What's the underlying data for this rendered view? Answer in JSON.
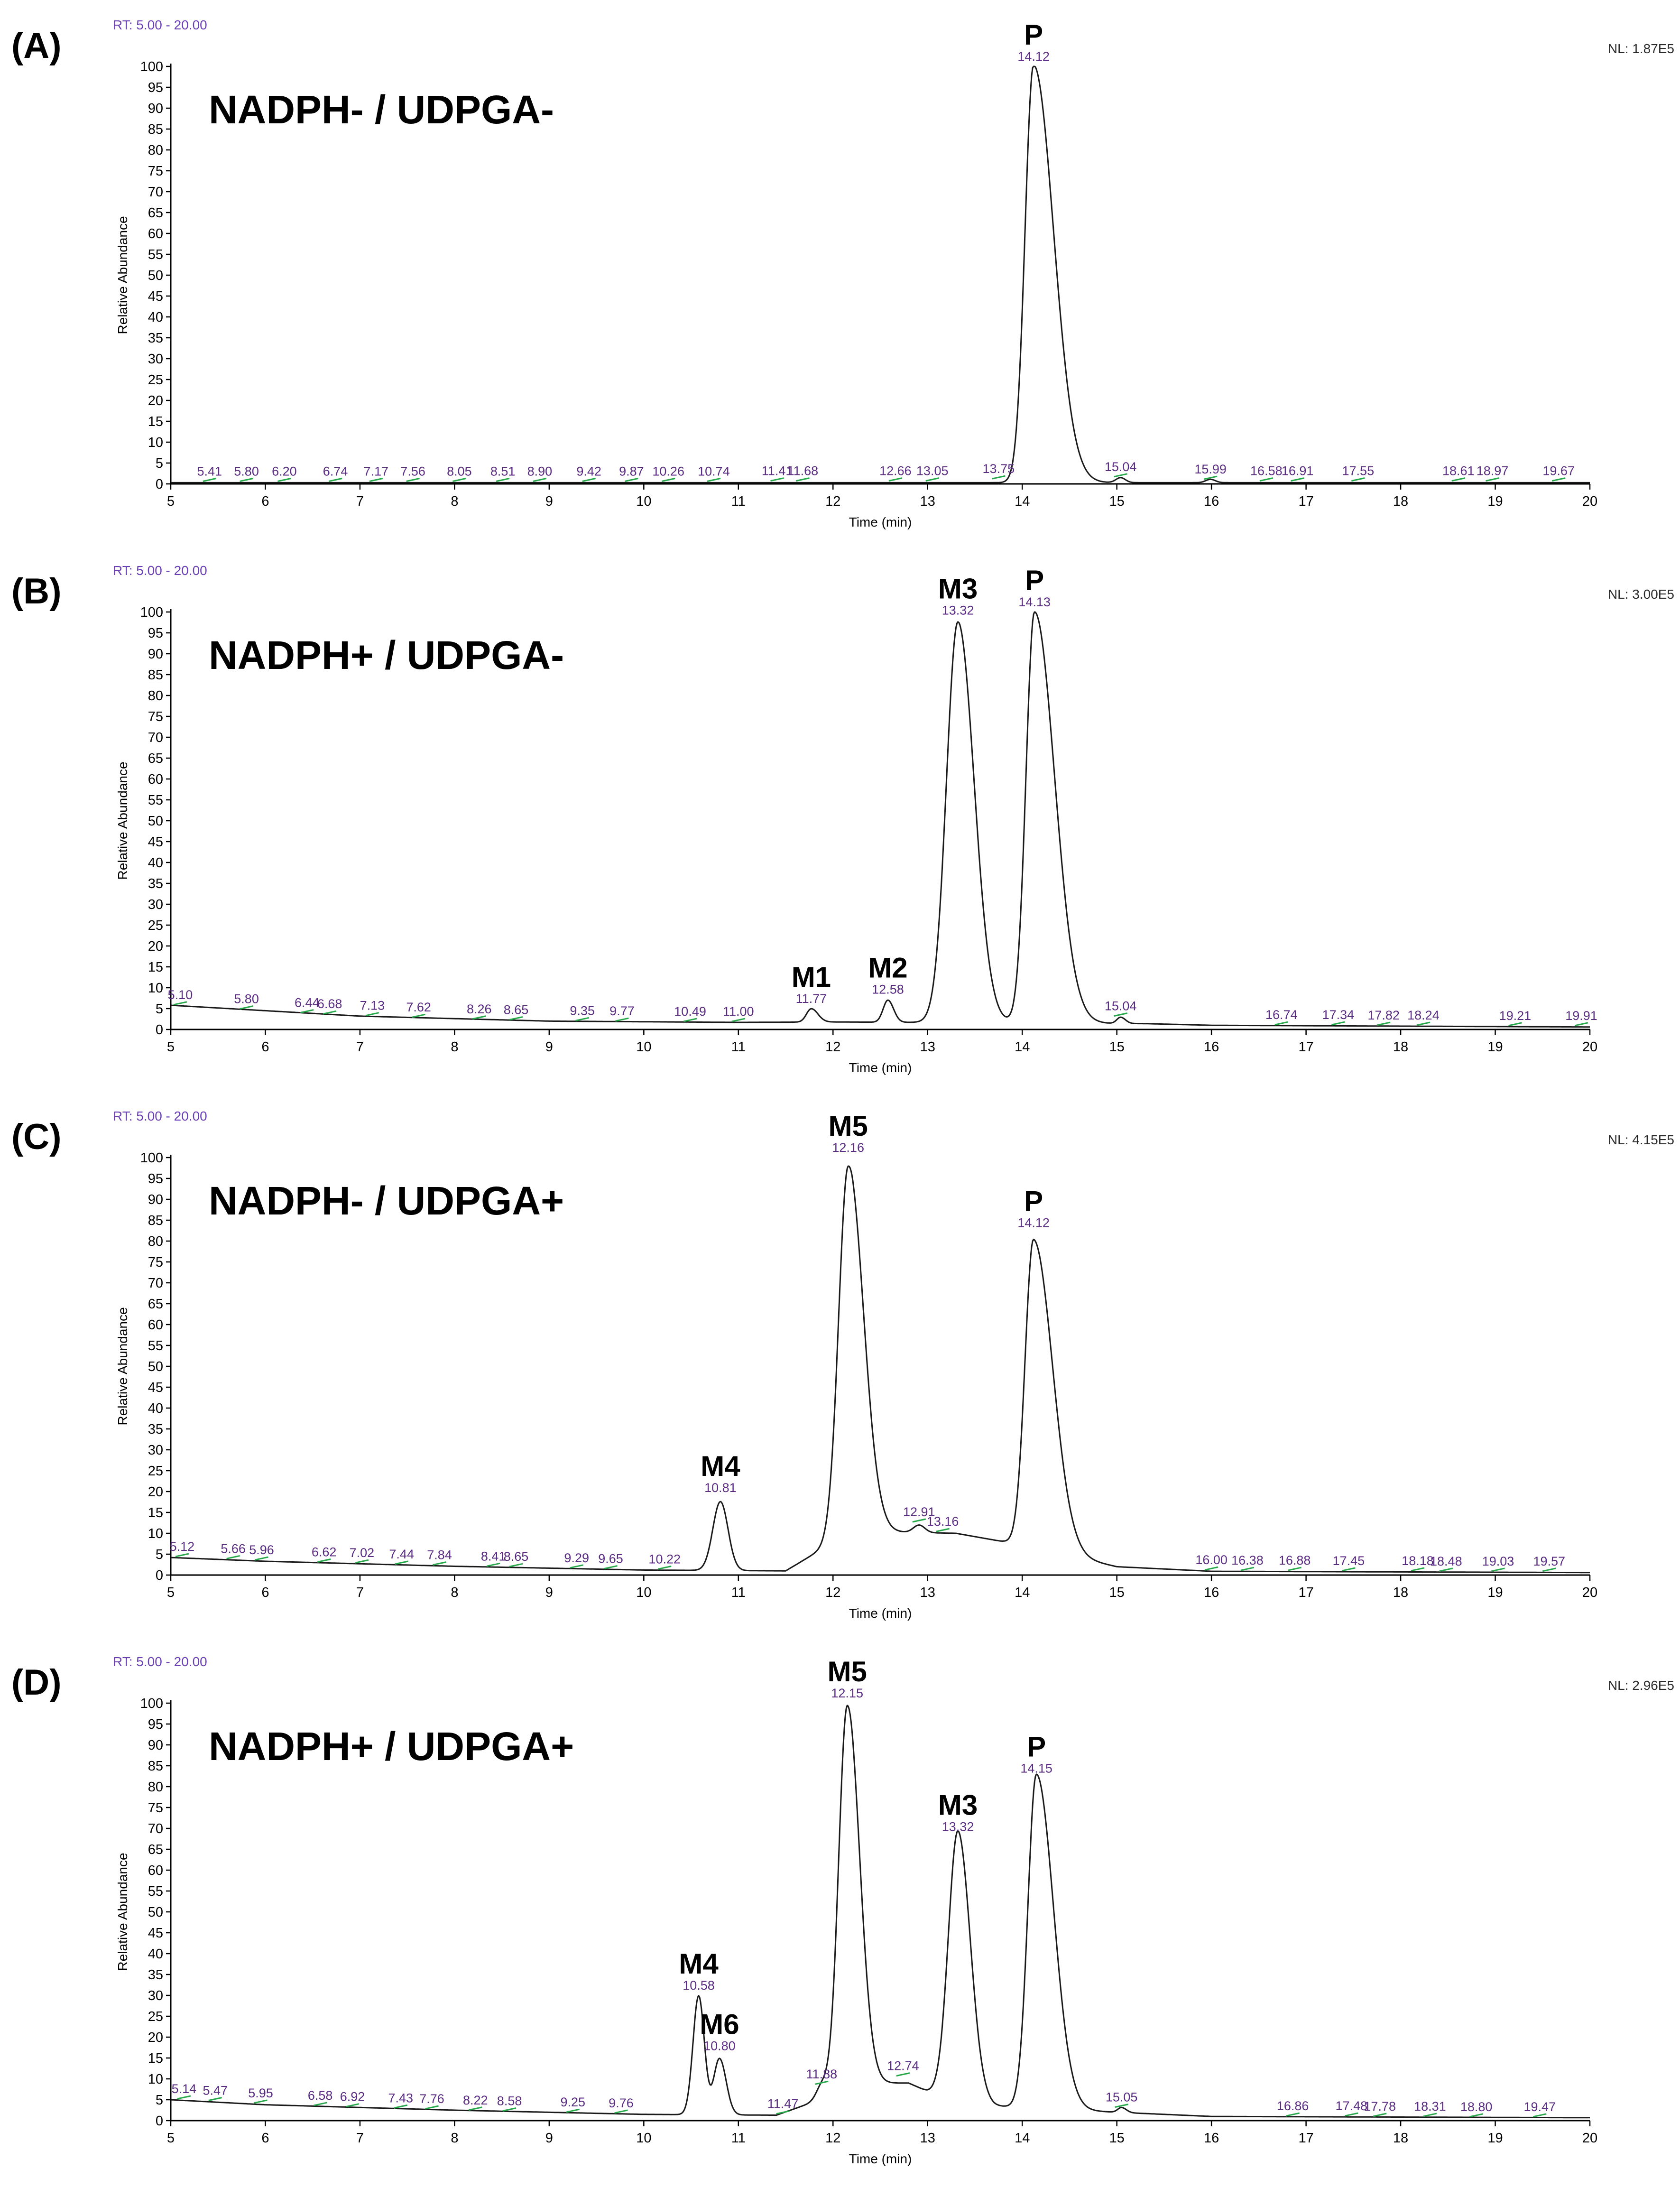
{
  "chart_data": [
    {
      "type": "line",
      "panel": "(A)",
      "title": "NADPH- / UDPGA-",
      "rt_range": "RT: 5.00 - 20.00",
      "nl": "NL: 1.87E5",
      "xlabel": "Time (min)",
      "ylabel": "Relative Abundance",
      "xlim": [
        5,
        20
      ],
      "ylim": [
        0,
        100
      ],
      "xticks": [
        5,
        6,
        7,
        8,
        9,
        10,
        11,
        12,
        13,
        14,
        15,
        16,
        17,
        18,
        19,
        20
      ],
      "yticks": [
        0,
        5,
        10,
        15,
        20,
        25,
        30,
        35,
        40,
        45,
        50,
        55,
        60,
        65,
        70,
        75,
        80,
        85,
        90,
        95,
        100
      ],
      "baseline": [
        [
          5.0,
          0.3
        ],
        [
          20.0,
          0.3
        ]
      ],
      "peaks": [
        [
          14.12,
          100,
          0.09,
          0.21,
          0
        ],
        [
          15.04,
          1.2,
          0.05,
          0.05,
          0
        ],
        [
          15.99,
          0.8,
          0.05,
          0.05,
          0
        ]
      ],
      "peak_labels": [
        {
          "name": "P",
          "rt": "14.12",
          "x": 14.12,
          "y": 100
        }
      ],
      "annotations": [
        {
          "rt": "5.41",
          "x": 5.41,
          "y": 0.4
        },
        {
          "rt": "5.80",
          "x": 5.8,
          "y": 0.4
        },
        {
          "rt": "6.20",
          "x": 6.2,
          "y": 0.4
        },
        {
          "rt": "6.74",
          "x": 6.74,
          "y": 0.4
        },
        {
          "rt": "7.17",
          "x": 7.17,
          "y": 0.4
        },
        {
          "rt": "7.56",
          "x": 7.56,
          "y": 0.4
        },
        {
          "rt": "8.05",
          "x": 8.05,
          "y": 0.4
        },
        {
          "rt": "8.51",
          "x": 8.51,
          "y": 0.4
        },
        {
          "rt": "8.90",
          "x": 8.9,
          "y": 0.4
        },
        {
          "rt": "9.42",
          "x": 9.42,
          "y": 0.4
        },
        {
          "rt": "9.87",
          "x": 9.87,
          "y": 0.4
        },
        {
          "rt": "10.26",
          "x": 10.26,
          "y": 0.4
        },
        {
          "rt": "10.74",
          "x": 10.74,
          "y": 0.4
        },
        {
          "rt": "11.41",
          "x": 11.41,
          "y": 0.5
        },
        {
          "rt": "11.68",
          "x": 11.68,
          "y": 0.5
        },
        {
          "rt": "12.66",
          "x": 12.66,
          "y": 0.5
        },
        {
          "rt": "13.05",
          "x": 13.05,
          "y": 0.5
        },
        {
          "rt": "13.75",
          "x": 13.75,
          "y": 1.0
        },
        {
          "rt": "15.04",
          "x": 15.04,
          "y": 1.5
        },
        {
          "rt": "15.99",
          "x": 15.99,
          "y": 0.9
        },
        {
          "rt": "16.58",
          "x": 16.58,
          "y": 0.5
        },
        {
          "rt": "16.91",
          "x": 16.91,
          "y": 0.5
        },
        {
          "rt": "17.55",
          "x": 17.55,
          "y": 0.5
        },
        {
          "rt": "18.61",
          "x": 18.61,
          "y": 0.5
        },
        {
          "rt": "18.97",
          "x": 18.97,
          "y": 0.5
        },
        {
          "rt": "19.67",
          "x": 19.67,
          "y": 0.5
        }
      ]
    },
    {
      "type": "line",
      "panel": "(B)",
      "title": "NADPH+ / UDPGA-",
      "rt_range": "RT: 5.00 - 20.00",
      "nl": "NL: 3.00E5",
      "xlabel": "Time (min)",
      "ylabel": "Relative Abundance",
      "xlim": [
        5,
        20
      ],
      "ylim": [
        0,
        100
      ],
      "xticks": [
        5,
        6,
        7,
        8,
        9,
        10,
        11,
        12,
        13,
        14,
        15,
        16,
        17,
        18,
        19,
        20
      ],
      "yticks": [
        0,
        5,
        10,
        15,
        20,
        25,
        30,
        35,
        40,
        45,
        50,
        55,
        60,
        65,
        70,
        75,
        80,
        85,
        90,
        95,
        100
      ],
      "baseline": [
        [
          5.0,
          5.8
        ],
        [
          7.0,
          3.2
        ],
        [
          9.0,
          2.0
        ],
        [
          11.0,
          1.7
        ],
        [
          12.0,
          1.8
        ],
        [
          15.3,
          1.4
        ],
        [
          16.0,
          1.0
        ],
        [
          20.0,
          0.6
        ]
      ],
      "peaks": [
        [
          11.77,
          3.2,
          0.05,
          0.07,
          0
        ],
        [
          12.58,
          5.3,
          0.05,
          0.06,
          0
        ],
        [
          13.32,
          96,
          0.12,
          0.17,
          0
        ],
        [
          14.13,
          98.5,
          0.09,
          0.21,
          0
        ],
        [
          15.04,
          1.5,
          0.04,
          0.05,
          0
        ]
      ],
      "peak_labels": [
        {
          "name": "M1",
          "rt": "11.77",
          "x": 11.77,
          "y": 5.0
        },
        {
          "name": "M2",
          "rt": "12.58",
          "x": 12.58,
          "y": 7.2
        },
        {
          "name": "M3",
          "rt": "13.32",
          "x": 13.32,
          "y": 98
        },
        {
          "name": "P",
          "rt": "14.13",
          "x": 14.13,
          "y": 100
        }
      ],
      "annotations": [
        {
          "rt": "5.10",
          "x": 5.1,
          "y": 5.7
        },
        {
          "rt": "5.80",
          "x": 5.8,
          "y": 4.7
        },
        {
          "rt": "6.44",
          "x": 6.44,
          "y": 3.8
        },
        {
          "rt": "6.68",
          "x": 6.68,
          "y": 3.5
        },
        {
          "rt": "7.13",
          "x": 7.13,
          "y": 3.1
        },
        {
          "rt": "7.62",
          "x": 7.62,
          "y": 2.7
        },
        {
          "rt": "8.26",
          "x": 8.26,
          "y": 2.3
        },
        {
          "rt": "8.65",
          "x": 8.65,
          "y": 2.1
        },
        {
          "rt": "9.35",
          "x": 9.35,
          "y": 1.9
        },
        {
          "rt": "9.77",
          "x": 9.77,
          "y": 1.8
        },
        {
          "rt": "10.49",
          "x": 10.49,
          "y": 1.7
        },
        {
          "rt": "11.00",
          "x": 11.0,
          "y": 1.7
        },
        {
          "rt": "15.04",
          "x": 15.04,
          "y": 3.0
        },
        {
          "rt": "16.74",
          "x": 16.74,
          "y": 0.9
        },
        {
          "rt": "17.34",
          "x": 17.34,
          "y": 0.9
        },
        {
          "rt": "17.82",
          "x": 17.82,
          "y": 0.8
        },
        {
          "rt": "18.24",
          "x": 18.24,
          "y": 0.8
        },
        {
          "rt": "19.21",
          "x": 19.21,
          "y": 0.7
        },
        {
          "rt": "19.91",
          "x": 19.91,
          "y": 0.7
        }
      ]
    },
    {
      "type": "line",
      "panel": "(C)",
      "title": "NADPH- / UDPGA+",
      "rt_range": "RT: 5.00 - 20.00",
      "nl": "NL: 4.15E5",
      "xlabel": "Time (min)",
      "ylabel": "Relative Abundance",
      "xlim": [
        5,
        20
      ],
      "ylim": [
        0,
        100
      ],
      "xticks": [
        5,
        6,
        7,
        8,
        9,
        10,
        11,
        12,
        13,
        14,
        15,
        16,
        17,
        18,
        19,
        20
      ],
      "yticks": [
        0,
        5,
        10,
        15,
        20,
        25,
        30,
        35,
        40,
        45,
        50,
        55,
        60,
        65,
        70,
        75,
        80,
        85,
        90,
        95,
        100
      ],
      "baseline": [
        [
          5.0,
          4.2
        ],
        [
          6.0,
          3.3
        ],
        [
          8.0,
          2.1
        ],
        [
          10.0,
          1.2
        ],
        [
          11.5,
          1.0
        ],
        [
          12.2,
          10.5
        ],
        [
          13.3,
          10.0
        ],
        [
          13.8,
          8.0
        ],
        [
          15.0,
          2.0
        ],
        [
          16.0,
          0.9
        ],
        [
          20.0,
          0.6
        ]
      ],
      "peaks": [
        [
          10.81,
          16.5,
          0.08,
          0.08,
          0
        ],
        [
          12.16,
          88,
          0.1,
          0.16,
          0
        ],
        [
          12.91,
          1.8,
          0.06,
          0.06,
          0
        ],
        [
          14.12,
          74,
          0.09,
          0.2,
          0
        ]
      ],
      "peak_labels": [
        {
          "name": "M4",
          "rt": "10.81",
          "x": 10.81,
          "y": 18.5
        },
        {
          "name": "M5",
          "rt": "12.16",
          "x": 12.16,
          "y": 100
        },
        {
          "name": "P",
          "rt": "14.12",
          "x": 14.12,
          "y": 82
        }
      ],
      "annotations": [
        {
          "rt": "5.12",
          "x": 5.12,
          "y": 4.2
        },
        {
          "rt": "5.66",
          "x": 5.66,
          "y": 3.7
        },
        {
          "rt": "5.96",
          "x": 5.96,
          "y": 3.4
        },
        {
          "rt": "6.62",
          "x": 6.62,
          "y": 2.9
        },
        {
          "rt": "7.02",
          "x": 7.02,
          "y": 2.7
        },
        {
          "rt": "7.44",
          "x": 7.44,
          "y": 2.4
        },
        {
          "rt": "7.84",
          "x": 7.84,
          "y": 2.2
        },
        {
          "rt": "8.41",
          "x": 8.41,
          "y": 1.9
        },
        {
          "rt": "8.65",
          "x": 8.65,
          "y": 1.8
        },
        {
          "rt": "9.29",
          "x": 9.29,
          "y": 1.5
        },
        {
          "rt": "9.65",
          "x": 9.65,
          "y": 1.3
        },
        {
          "rt": "10.22",
          "x": 10.22,
          "y": 1.2
        },
        {
          "rt": "12.91",
          "x": 12.91,
          "y": 12.5
        },
        {
          "rt": "13.16",
          "x": 13.16,
          "y": 10.2
        },
        {
          "rt": "16.00",
          "x": 16.0,
          "y": 1.0
        },
        {
          "rt": "16.38",
          "x": 16.38,
          "y": 0.9
        },
        {
          "rt": "16.88",
          "x": 16.88,
          "y": 0.9
        },
        {
          "rt": "17.45",
          "x": 17.45,
          "y": 0.8
        },
        {
          "rt": "18.18",
          "x": 18.18,
          "y": 0.8
        },
        {
          "rt": "18.48",
          "x": 18.48,
          "y": 0.7
        },
        {
          "rt": "19.03",
          "x": 19.03,
          "y": 0.7
        },
        {
          "rt": "19.57",
          "x": 19.57,
          "y": 0.7
        }
      ]
    },
    {
      "type": "line",
      "panel": "(D)",
      "title": "NADPH+ / UDPGA+",
      "rt_range": "RT: 5.00 - 20.00",
      "nl": "NL: 2.96E5",
      "xlabel": "Time (min)",
      "ylabel": "Relative Abundance",
      "xlim": [
        5,
        20
      ],
      "ylim": [
        0,
        100
      ],
      "xticks": [
        5,
        6,
        7,
        8,
        9,
        10,
        11,
        12,
        13,
        14,
        15,
        16,
        17,
        18,
        19,
        20
      ],
      "yticks": [
        0,
        5,
        10,
        15,
        20,
        25,
        30,
        35,
        40,
        45,
        50,
        55,
        60,
        65,
        70,
        75,
        80,
        85,
        90,
        95,
        100
      ],
      "baseline": [
        [
          5.0,
          5.0
        ],
        [
          6.0,
          3.8
        ],
        [
          8.0,
          2.5
        ],
        [
          10.0,
          1.5
        ],
        [
          11.4,
          1.3
        ],
        [
          11.8,
          4.5
        ],
        [
          12.2,
          9.0
        ],
        [
          12.8,
          9.0
        ],
        [
          13.0,
          7.0
        ],
        [
          13.7,
          3.5
        ],
        [
          15.0,
          2.0
        ],
        [
          16.0,
          1.0
        ],
        [
          20.0,
          0.7
        ]
      ],
      "peaks": [
        [
          10.58,
          28.5,
          0.06,
          0.06,
          0
        ],
        [
          10.8,
          13.5,
          0.06,
          0.07,
          0
        ],
        [
          11.88,
          3.0,
          0.06,
          0.06,
          0
        ],
        [
          12.15,
          91,
          0.09,
          0.13,
          0
        ],
        [
          13.32,
          64,
          0.1,
          0.13,
          0
        ],
        [
          14.15,
          80,
          0.09,
          0.18,
          0
        ],
        [
          15.05,
          1.2,
          0.04,
          0.05,
          0
        ]
      ],
      "peak_labels": [
        {
          "name": "M4",
          "rt": "10.58",
          "x": 10.58,
          "y": 30
        },
        {
          "name": "M6",
          "rt": "10.80",
          "x": 10.8,
          "y": 15.5
        },
        {
          "name": "M5",
          "rt": "12.15",
          "x": 12.15,
          "y": 100
        },
        {
          "name": "M3",
          "rt": "13.32",
          "x": 13.32,
          "y": 68
        },
        {
          "name": "P",
          "rt": "14.15",
          "x": 14.15,
          "y": 82
        }
      ],
      "annotations": [
        {
          "rt": "5.14",
          "x": 5.14,
          "y": 5.0
        },
        {
          "rt": "5.47",
          "x": 5.47,
          "y": 4.6
        },
        {
          "rt": "5.95",
          "x": 5.95,
          "y": 4.0
        },
        {
          "rt": "6.58",
          "x": 6.58,
          "y": 3.4
        },
        {
          "rt": "6.92",
          "x": 6.92,
          "y": 3.1
        },
        {
          "rt": "7.43",
          "x": 7.43,
          "y": 2.8
        },
        {
          "rt": "7.76",
          "x": 7.76,
          "y": 2.6
        },
        {
          "rt": "8.22",
          "x": 8.22,
          "y": 2.3
        },
        {
          "rt": "8.58",
          "x": 8.58,
          "y": 2.1
        },
        {
          "rt": "9.25",
          "x": 9.25,
          "y": 1.8
        },
        {
          "rt": "9.76",
          "x": 9.76,
          "y": 1.6
        },
        {
          "rt": "11.47",
          "x": 11.47,
          "y": 1.4
        },
        {
          "rt": "11.88",
          "x": 11.88,
          "y": 8.5
        },
        {
          "rt": "12.74",
          "x": 12.74,
          "y": 10.5
        },
        {
          "rt": "15.05",
          "x": 15.05,
          "y": 3.0
        },
        {
          "rt": "16.86",
          "x": 16.86,
          "y": 0.9
        },
        {
          "rt": "17.48",
          "x": 17.48,
          "y": 0.9
        },
        {
          "rt": "17.78",
          "x": 17.78,
          "y": 0.8
        },
        {
          "rt": "18.31",
          "x": 18.31,
          "y": 0.8
        },
        {
          "rt": "18.80",
          "x": 18.8,
          "y": 0.7
        },
        {
          "rt": "19.47",
          "x": 19.47,
          "y": 0.7
        }
      ]
    }
  ]
}
